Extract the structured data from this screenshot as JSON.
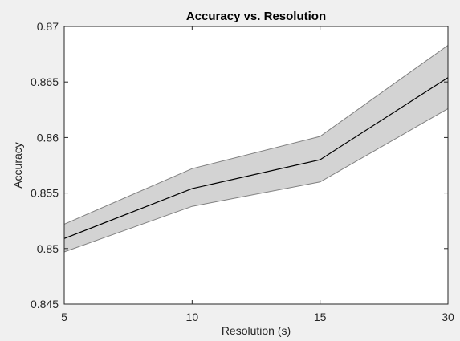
{
  "chart_data": {
    "type": "line",
    "title": "Accuracy vs. Resolution",
    "xlabel": "Resolution (s)",
    "ylabel": "Accuracy",
    "categories": [
      "5",
      "10",
      "15",
      "30"
    ],
    "series": [
      {
        "values": [
          0.8509,
          0.8554,
          0.858,
          0.8654
        ],
        "upper": [
          0.8522,
          0.8572,
          0.8601,
          0.8683
        ],
        "lower": [
          0.8497,
          0.8538,
          0.856,
          0.8626
        ]
      }
    ],
    "ylim": [
      0.845,
      0.87
    ],
    "yticks": [
      "0.845",
      "0.85",
      "0.855",
      "0.86",
      "0.865",
      "0.87"
    ],
    "grid": false,
    "colors": {
      "line": "#000000",
      "band": "#d3d3d3",
      "band_edge": "#808080",
      "axis": "#262626",
      "background": "#f0f0f0",
      "plot_background": "#ffffff"
    }
  }
}
